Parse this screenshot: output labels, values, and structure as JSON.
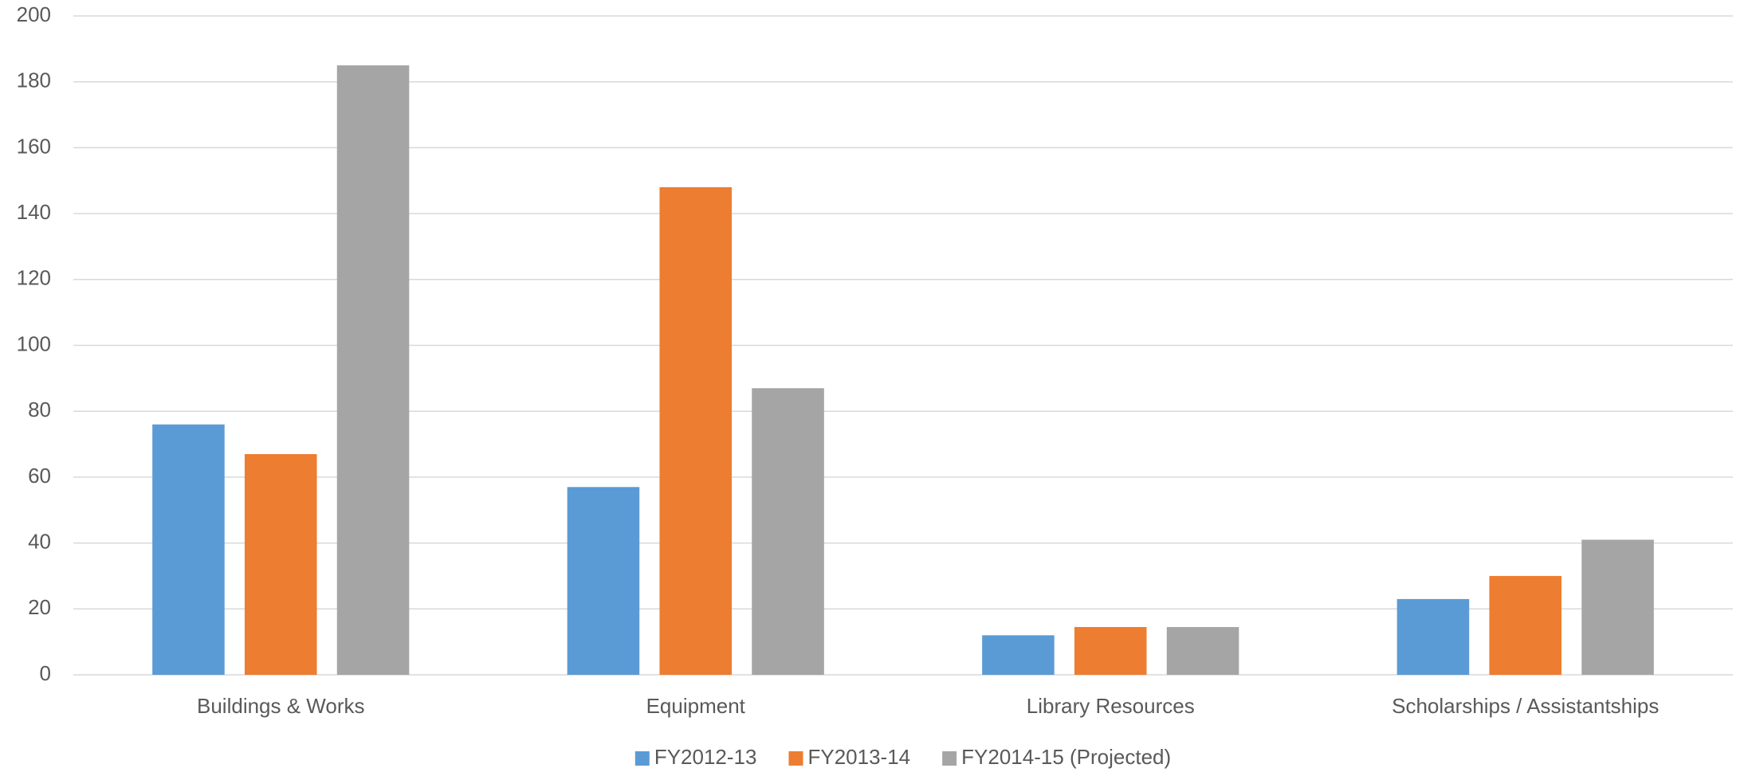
{
  "chart_data": {
    "type": "bar",
    "categories": [
      "Buildings & Works",
      "Equipment",
      "Library Resources",
      "Scholarships / Assistantships"
    ],
    "series": [
      {
        "name": "FY2012-13",
        "color": "#5b9bd5",
        "values": [
          76,
          57,
          12,
          23
        ]
      },
      {
        "name": "FY2013-14",
        "color": "#ed7d31",
        "values": [
          67,
          148,
          14.5,
          30
        ]
      },
      {
        "name": "FY2014-15 (Projected)",
        "color": "#a5a5a5",
        "values": [
          185,
          87,
          14.5,
          41
        ]
      }
    ],
    "ylim": [
      0,
      200
    ],
    "yticks": [
      0,
      20,
      40,
      60,
      80,
      100,
      120,
      140,
      160,
      180,
      200
    ],
    "grid": true,
    "legend": "bottom"
  }
}
